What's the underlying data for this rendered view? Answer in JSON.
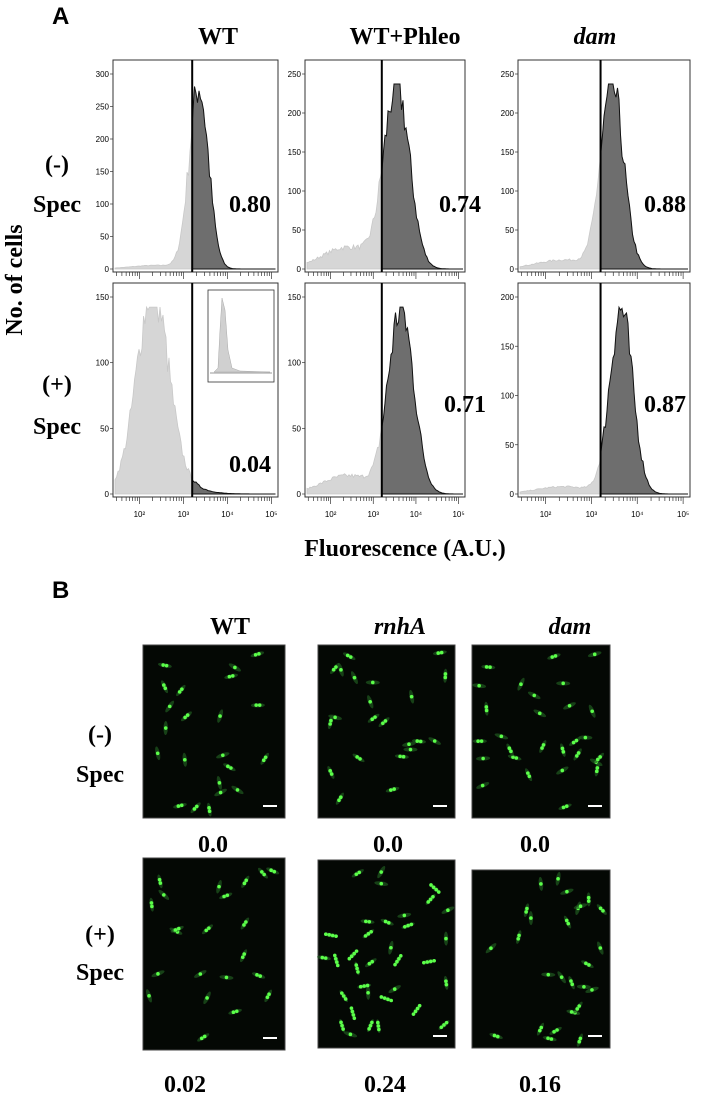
{
  "panel_a": {
    "label": "A",
    "y_axis_label": "No. of cells",
    "x_axis_label": "Fluorescence (A.U.)",
    "columns": [
      "WT",
      "WT+Phleo",
      "dam"
    ],
    "rows": [
      {
        "sign": "(-)",
        "label": "Spec"
      },
      {
        "sign": "(+)",
        "label": "Spec"
      }
    ],
    "x_tick_labels": [
      "10²",
      "10³",
      "10⁴",
      "10⁵"
    ],
    "y_tick_labels": [
      [
        [
          "300",
          "250",
          "200",
          "150",
          "100",
          "50",
          "0"
        ],
        [
          "250",
          "200",
          "150",
          "100",
          "50",
          "0"
        ],
        [
          "250",
          "200",
          "150",
          "100",
          "50",
          "0"
        ]
      ],
      [
        [
          "150",
          "100",
          "50",
          "0"
        ],
        [
          "150",
          "100",
          "50",
          "0"
        ],
        [
          "200",
          "150",
          "100",
          "50",
          "0"
        ]
      ]
    ],
    "values": [
      [
        "0.80",
        "0.74",
        "0.88"
      ],
      [
        "0.04",
        "0.71",
        "0.87"
      ]
    ]
  },
  "panel_b": {
    "label": "B",
    "columns": [
      "WT",
      "rnhA",
      "dam"
    ],
    "rows": [
      {
        "sign": "(-)",
        "label": "Spec"
      },
      {
        "sign": "(+)",
        "label": "Spec"
      }
    ],
    "values": [
      [
        "0.0",
        "0.0",
        "0.0"
      ],
      [
        "0.02",
        "0.24",
        "0.16"
      ]
    ]
  }
}
